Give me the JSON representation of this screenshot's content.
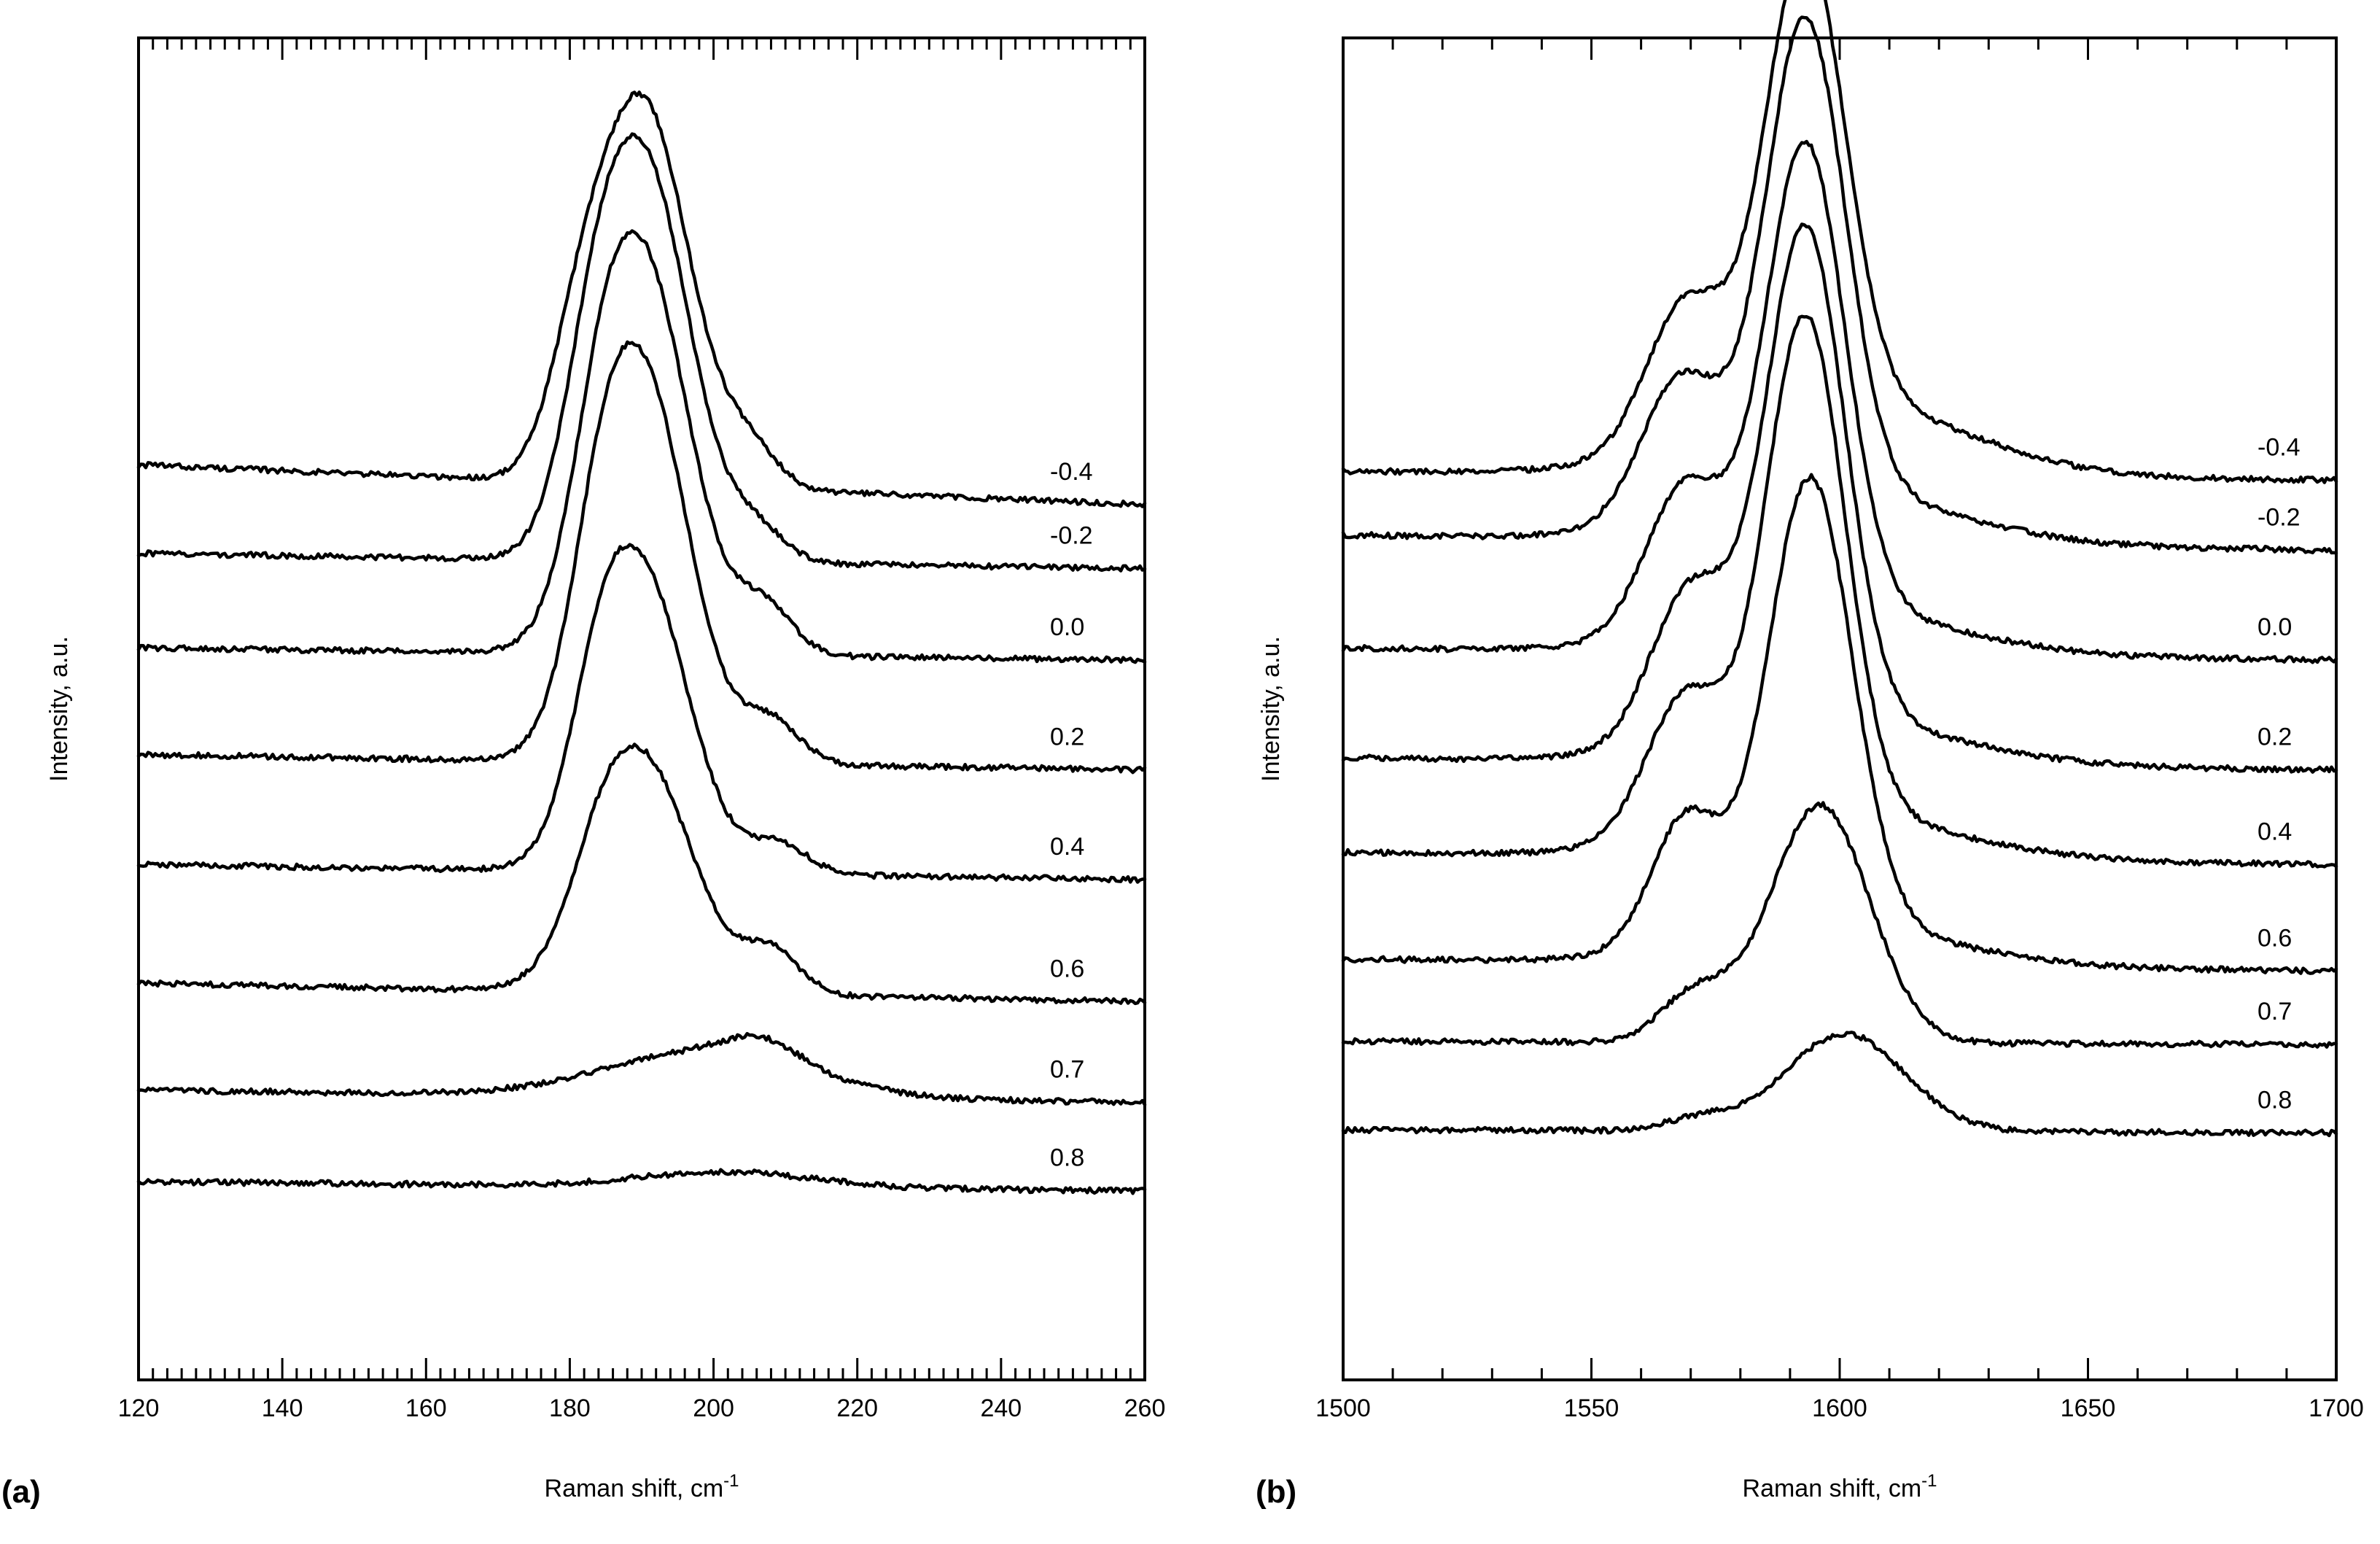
{
  "chart_data": [
    {
      "panel": "(a)",
      "type": "line",
      "xlabel": "Raman shift, cm",
      "xlabel_sup": "-1",
      "ylabel": "Intensity, a.u.",
      "xlim": [
        120,
        260
      ],
      "x_major_ticks": [
        120,
        140,
        160,
        180,
        200,
        220,
        240,
        260
      ],
      "x_minor_step": 2,
      "series_style": "vertically offset stacked traces",
      "series": [
        {
          "name": "-0.4",
          "baseline": [
            9.0,
            8.35
          ],
          "peaks": [
            {
              "center": 190,
              "height": 6.3,
              "width": 6.5
            },
            {
              "center": 181,
              "height": 1.3,
              "width": 4
            },
            {
              "center": 205,
              "height": 0.6,
              "width": 4
            }
          ]
        },
        {
          "name": "-0.2",
          "baseline": [
            7.55,
            7.3
          ],
          "peaks": [
            {
              "center": 190,
              "height": 6.6,
              "width": 6.5
            },
            {
              "center": 183,
              "height": 1.4,
              "width": 4
            },
            {
              "center": 206,
              "height": 0.5,
              "width": 4
            }
          ]
        },
        {
          "name": "0.0",
          "baseline": [
            6.0,
            5.8
          ],
          "peaks": [
            {
              "center": 190,
              "height": 6.4,
              "width": 6.5
            },
            {
              "center": 184,
              "height": 1.3,
              "width": 4
            },
            {
              "center": 207,
              "height": 0.8,
              "width": 4
            }
          ]
        },
        {
          "name": "0.2",
          "baseline": [
            4.25,
            4.0
          ],
          "peaks": [
            {
              "center": 190,
              "height": 6.3,
              "width": 6.5
            },
            {
              "center": 184,
              "height": 1.4,
              "width": 4
            },
            {
              "center": 208,
              "height": 0.7,
              "width": 4
            }
          ]
        },
        {
          "name": "0.4",
          "baseline": [
            2.45,
            2.2
          ],
          "peaks": [
            {
              "center": 190,
              "height": 4.8,
              "width": 6.5
            },
            {
              "center": 184,
              "height": 1.3,
              "width": 4
            },
            {
              "center": 209,
              "height": 0.5,
              "width": 4
            }
          ]
        },
        {
          "name": "0.6",
          "baseline": [
            0.5,
            0.2
          ],
          "peaks": [
            {
              "center": 190,
              "height": 3.8,
              "width": 7
            },
            {
              "center": 184,
              "height": 0.6,
              "width": 4
            },
            {
              "center": 208,
              "height": 0.7,
              "width": 4
            }
          ]
        },
        {
          "name": "0.7",
          "baseline": [
            -1.25,
            -1.45
          ],
          "peaks": [
            {
              "center": 199,
              "height": 0.75,
              "width": 14
            },
            {
              "center": 207,
              "height": 0.35,
              "width": 5
            }
          ]
        },
        {
          "name": "0.8",
          "baseline": [
            -2.75,
            -2.9
          ],
          "peaks": [
            {
              "center": 202,
              "height": 0.25,
              "width": 12
            }
          ]
        }
      ]
    },
    {
      "panel": "(b)",
      "type": "line",
      "xlabel": "Raman shift, cm",
      "xlabel_sup": "-1",
      "ylabel": "Intensity, a.u.",
      "xlim": [
        1500,
        1700
      ],
      "x_major_ticks": [
        1500,
        1550,
        1600,
        1650,
        1700
      ],
      "x_minor_step": 10,
      "series_style": "vertically offset stacked traces",
      "series": [
        {
          "name": "-0.4",
          "baseline": [
            8.9,
            8.75
          ],
          "peaks": [
            {
              "center": 1593,
              "height": 7.5,
              "width": 8
            },
            {
              "center": 1569,
              "height": 2.3,
              "width": 8
            },
            {
              "center": 1600,
              "height": 1.2,
              "width": 25
            }
          ]
        },
        {
          "name": "-0.2",
          "baseline": [
            7.85,
            7.6
          ],
          "peaks": [
            {
              "center": 1593,
              "height": 7.8,
              "width": 8
            },
            {
              "center": 1568,
              "height": 2.3,
              "width": 8
            },
            {
              "center": 1598,
              "height": 0.8,
              "width": 25
            }
          ]
        },
        {
          "name": "0.0",
          "baseline": [
            6.0,
            5.8
          ],
          "peaks": [
            {
              "center": 1593,
              "height": 7.7,
              "width": 8
            },
            {
              "center": 1569,
              "height": 2.4,
              "width": 8
            },
            {
              "center": 1598,
              "height": 0.7,
              "width": 25
            }
          ]
        },
        {
          "name": "0.2",
          "baseline": [
            4.2,
            4.0
          ],
          "peaks": [
            {
              "center": 1593,
              "height": 8.1,
              "width": 8
            },
            {
              "center": 1570,
              "height": 2.5,
              "width": 8
            },
            {
              "center": 1598,
              "height": 0.7,
              "width": 25
            }
          ]
        },
        {
          "name": "0.4",
          "baseline": [
            2.65,
            2.45
          ],
          "peaks": [
            {
              "center": 1593,
              "height": 8.2,
              "width": 8
            },
            {
              "center": 1569,
              "height": 2.3,
              "width": 8
            },
            {
              "center": 1598,
              "height": 0.7,
              "width": 25
            }
          ]
        },
        {
          "name": "0.6",
          "baseline": [
            0.9,
            0.7
          ],
          "peaks": [
            {
              "center": 1594,
              "height": 7.4,
              "width": 8.5
            },
            {
              "center": 1569,
              "height": 2.1,
              "width": 7
            },
            {
              "center": 1598,
              "height": 0.6,
              "width": 25
            }
          ]
        },
        {
          "name": "0.7",
          "baseline": [
            -0.45,
            -0.5
          ],
          "peaks": [
            {
              "center": 1596,
              "height": 3.9,
              "width": 10
            },
            {
              "center": 1571,
              "height": 0.8,
              "width": 7
            }
          ]
        },
        {
          "name": "0.8",
          "baseline": [
            -1.9,
            -1.95
          ],
          "peaks": [
            {
              "center": 1601,
              "height": 1.6,
              "width": 12
            },
            {
              "center": 1572,
              "height": 0.2,
              "width": 7
            }
          ]
        }
      ]
    }
  ]
}
